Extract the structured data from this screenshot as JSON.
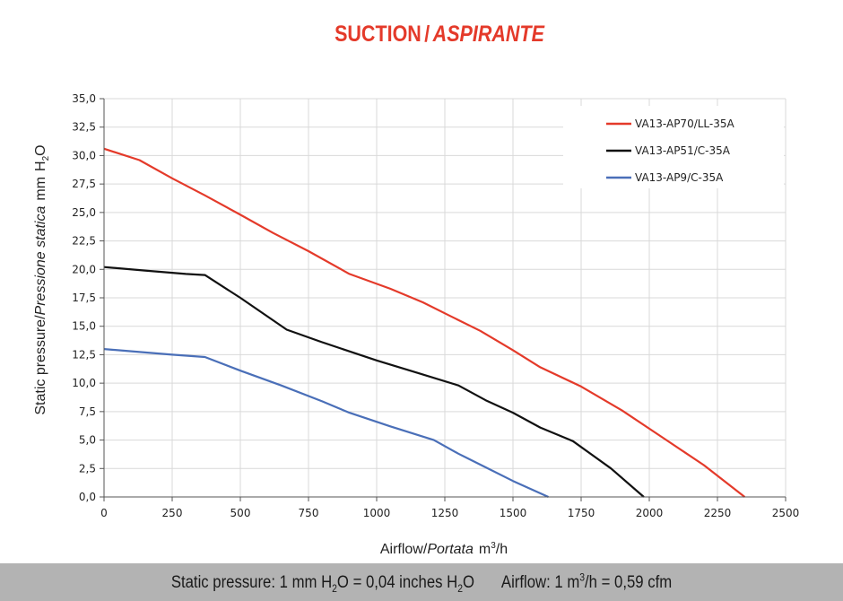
{
  "title": {
    "main": "SUCTION",
    "separator": "/",
    "italic": "ASPIRANTE"
  },
  "chart_data": {
    "type": "line",
    "title": "SUCTION / ASPIRANTE",
    "xlabel": {
      "plain": "Airflow",
      "separator": "/",
      "italic": "Portata",
      "unit_base": "m",
      "unit_sup": "3",
      "unit_tail": "/h"
    },
    "ylabel": {
      "plain": "Static pressure",
      "separator": "/",
      "italic": "Pressione statica",
      "unit": "mm",
      "h": "H",
      "sub": "2",
      "o": "O"
    },
    "xlim": [
      0,
      2500
    ],
    "ylim": [
      0,
      35
    ],
    "x_ticks": [
      "0",
      "250",
      "500",
      "750",
      "1000",
      "1250",
      "1500",
      "1750",
      "2000",
      "2250",
      "2500"
    ],
    "x_tick_values": [
      0,
      250,
      500,
      750,
      1000,
      1250,
      1500,
      1750,
      2000,
      2250,
      2500
    ],
    "y_ticks": [
      "0,0",
      "2,5",
      "5,0",
      "7,5",
      "10,0",
      "12,5",
      "15,0",
      "17,5",
      "20,0",
      "22,5",
      "25,0",
      "27,5",
      "30,0",
      "32,5",
      "35,0"
    ],
    "y_tick_values": [
      0,
      2.5,
      5,
      7.5,
      10,
      12.5,
      15,
      17.5,
      20,
      22.5,
      25,
      27.5,
      30,
      32.5,
      35
    ],
    "grid": "horizontal and vertical",
    "legend_position": "top-right",
    "series": [
      {
        "name": "VA13-AP70/LL-35A",
        "color": "#e43a2a",
        "x": [
          0,
          130,
          250,
          370,
          500,
          620,
          750,
          900,
          1050,
          1170,
          1270,
          1380,
          1500,
          1600,
          1750,
          1900,
          2050,
          2200,
          2350
        ],
        "y": [
          30.6,
          29.6,
          28.0,
          26.5,
          24.8,
          23.2,
          21.6,
          19.6,
          18.3,
          17.1,
          15.9,
          14.6,
          12.9,
          11.4,
          9.7,
          7.6,
          5.2,
          2.8,
          0.0
        ]
      },
      {
        "name": "VA13-AP51/C-35A",
        "color": "#111111",
        "x": [
          0,
          150,
          300,
          370,
          500,
          670,
          800,
          1000,
          1150,
          1300,
          1400,
          1500,
          1600,
          1720,
          1860,
          1980
        ],
        "y": [
          20.2,
          19.9,
          19.6,
          19.5,
          17.5,
          14.7,
          13.6,
          12.0,
          10.9,
          9.8,
          8.5,
          7.4,
          6.1,
          4.9,
          2.5,
          0.0
        ]
      },
      {
        "name": "VA13-AP9/C-35A",
        "color": "#4a6fb8",
        "x": [
          0,
          150,
          250,
          370,
          500,
          650,
          800,
          900,
          1050,
          1210,
          1300,
          1400,
          1500,
          1630
        ],
        "y": [
          13.0,
          12.7,
          12.5,
          12.3,
          11.1,
          9.8,
          8.4,
          7.4,
          6.2,
          5.0,
          3.8,
          2.6,
          1.4,
          0.0
        ]
      }
    ]
  },
  "footer": {
    "pressure": {
      "a": "Static pressure: 1 mm H",
      "a_sub": "2",
      "b": "O = 0,04 inches H",
      "b_sub": "2",
      "c": "O"
    },
    "airflow": {
      "a": "Airflow: 1 m",
      "a_sup": "3",
      "b": "/h = 0,59 cfm"
    }
  }
}
